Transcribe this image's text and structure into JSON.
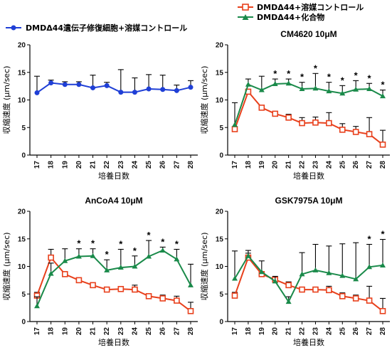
{
  "legends": {
    "top_left": {
      "label": "DMDΔ44遺伝子修復細胞+溶媒コントロール",
      "color": "#1f3fd6"
    },
    "top_right": [
      {
        "label": "DMDΔ44+溶媒コントロール",
        "color": "#e8401c"
      },
      {
        "label": "DMDΔ44+化合物",
        "color": "#1a8a4a"
      }
    ]
  },
  "chart_data": [
    {
      "type": "line",
      "title": "",
      "xlabel": "培養日数",
      "ylabel": "収縮速度 (µm/sec)",
      "x": [
        17,
        18,
        19,
        20,
        21,
        22,
        23,
        24,
        25,
        26,
        27,
        28
      ],
      "ylim": [
        0,
        20
      ],
      "yticks": [
        0,
        5,
        10,
        15,
        20
      ],
      "series": [
        {
          "name": "DMDΔ44遺伝子修復細胞+溶媒コントロール",
          "color": "#1f3fd6",
          "marker": "circle",
          "values": [
            11.3,
            13.1,
            12.8,
            12.8,
            12.2,
            12.6,
            11.4,
            11.4,
            12.0,
            11.9,
            11.7,
            12.3
          ],
          "err": [
            3.0,
            0.5,
            0.5,
            0.5,
            2.3,
            0.6,
            4.1,
            2.6,
            2.6,
            2.6,
            1.0,
            1.2
          ]
        }
      ],
      "significant": []
    },
    {
      "type": "line",
      "title": "CM4620 10μM",
      "xlabel": "培養日数",
      "ylabel": "収縮速度 (µm/sec)",
      "x": [
        17,
        18,
        19,
        20,
        21,
        22,
        23,
        24,
        25,
        26,
        27,
        28
      ],
      "ylim": [
        0,
        20
      ],
      "yticks": [
        0,
        5,
        10,
        15,
        20
      ],
      "series": [
        {
          "name": "DMDΔ44+溶媒コントロール",
          "color": "#e8401c",
          "marker": "square",
          "values": [
            4.7,
            11.5,
            8.6,
            7.5,
            6.8,
            5.8,
            5.9,
            5.8,
            4.6,
            4.2,
            3.8,
            1.9
          ],
          "err": [
            0,
            0,
            0,
            0,
            0.6,
            1.0,
            1.0,
            1.9,
            1.1,
            1.0,
            3.0,
            2.6
          ]
        },
        {
          "name": "DMDΔ44+化合物",
          "color": "#1a8a4a",
          "marker": "triangle",
          "values": [
            5.5,
            12.8,
            11.8,
            12.9,
            13.0,
            12.0,
            12.1,
            11.6,
            11.2,
            11.9,
            12.0,
            10.7
          ],
          "err": [
            4.0,
            1.0,
            2.5,
            0.9,
            0.8,
            1.2,
            2.7,
            1.6,
            1.4,
            1.6,
            1.0,
            1.1
          ]
        }
      ],
      "significant": [
        20,
        21,
        22,
        23,
        24,
        25,
        26,
        27,
        28
      ]
    },
    {
      "type": "line",
      "title": "AnCoA4 10μM",
      "xlabel": "培養日数",
      "ylabel": "収縮速度 (µm/sec)",
      "x": [
        17,
        18,
        19,
        20,
        21,
        22,
        23,
        24,
        25,
        26,
        27,
        28
      ],
      "ylim": [
        0,
        20
      ],
      "yticks": [
        0,
        5,
        10,
        15,
        20
      ],
      "series": [
        {
          "name": "DMDΔ44+溶媒コントロール",
          "color": "#e8401c",
          "marker": "square",
          "values": [
            4.7,
            11.6,
            8.6,
            7.5,
            6.6,
            5.8,
            5.9,
            5.8,
            4.6,
            4.2,
            3.8,
            1.9
          ],
          "err": [
            0.6,
            1.5,
            0,
            0,
            0,
            0,
            0,
            0.8,
            0,
            0.6,
            0.8,
            1.6
          ]
        },
        {
          "name": "DMDΔ44+化合物",
          "color": "#1a8a4a",
          "marker": "triangle",
          "values": [
            2.8,
            8.7,
            11.0,
            11.8,
            11.9,
            9.3,
            9.8,
            10.0,
            11.8,
            12.9,
            11.3,
            6.6
          ],
          "err": [
            1.7,
            1.9,
            2.2,
            1.4,
            1.3,
            1.9,
            3.3,
            1.9,
            2.9,
            0.6,
            1.8,
            3.8
          ]
        }
      ],
      "significant": [
        20,
        21,
        22,
        23,
        24,
        25,
        26,
        27
      ]
    },
    {
      "type": "line",
      "title": "GSK7975A 10μM",
      "xlabel": "培養日数",
      "ylabel": "収縮速度 (µm/sec)",
      "x": [
        17,
        18,
        19,
        20,
        21,
        22,
        23,
        24,
        25,
        26,
        27,
        28
      ],
      "ylim": [
        0,
        20
      ],
      "yticks": [
        0,
        5,
        10,
        15,
        20
      ],
      "series": [
        {
          "name": "DMDΔ44+溶媒コントロール",
          "color": "#e8401c",
          "marker": "square",
          "values": [
            4.7,
            11.6,
            8.6,
            7.6,
            6.6,
            5.8,
            5.8,
            5.7,
            4.6,
            4.2,
            3.8,
            1.9
          ],
          "err": [
            0.6,
            0.8,
            0,
            0,
            0.6,
            0,
            0,
            0.7,
            0.6,
            0.6,
            2.6,
            2.3
          ]
        },
        {
          "name": "DMDΔ44+化合物",
          "color": "#1a8a4a",
          "marker": "triangle",
          "values": [
            7.8,
            11.9,
            9.0,
            7.3,
            3.6,
            8.6,
            9.3,
            8.8,
            8.3,
            7.7,
            9.9,
            10.2
          ],
          "err": [
            5.0,
            1.0,
            2.0,
            0.9,
            0.9,
            3.9,
            4.7,
            4.9,
            5.8,
            6.6,
            4.1,
            4.7
          ]
        }
      ],
      "significant": [
        27,
        28
      ]
    }
  ]
}
